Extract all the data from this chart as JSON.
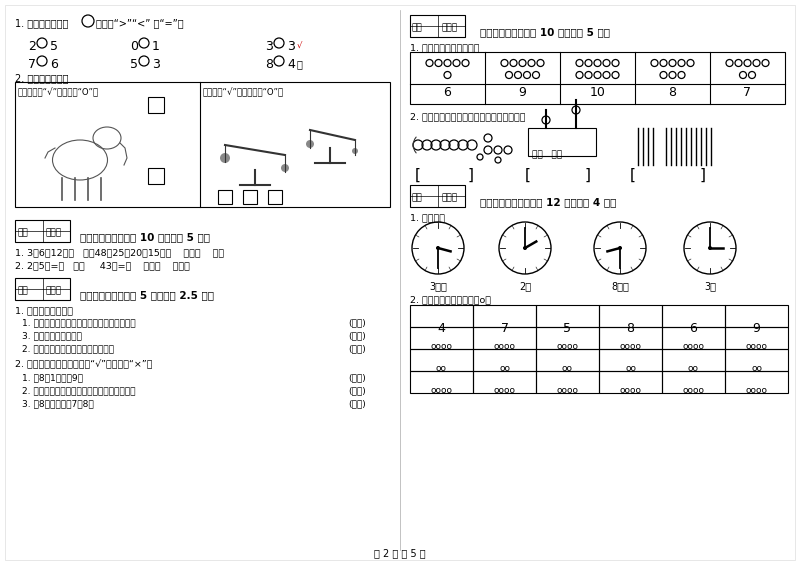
{
  "bg_color": "#ffffff",
  "border_color": "#cccccc",
  "text_color": "#000000",
  "light_gray": "#888888",
  "page_footer": "第 2 页 共 5 页",
  "left_s1_pairs": [
    [
      "2",
      "5"
    ],
    [
      "0",
      "1"
    ],
    [
      "3",
      "3"
    ],
    [
      "7",
      "6"
    ],
    [
      "5",
      "3"
    ],
    [
      "8",
      "4"
    ]
  ],
  "left_box1_label": "长得高的画“√”，矮的画“O”。",
  "left_box2_label": "最轻的画“√”，最重的画“O”。",
  "left_s3_title": "四、选一选（本题公 10 分，每题 5 分）",
  "left_s3_q1": "1. 3、6、12、（   ），48；25、20、15、（    ）、（    ）。",
  "left_s3_q2": "2. 2元5角=（   ）角     43角=（    ）元（    ）角。",
  "left_s4_title": "五、对与错（本题公 5 分，每题 2.5 分）",
  "left_s4_q1": "1. 我会判断对与错。",
  "left_s4_items1": [
    "1. 两个一样大的正方形可以拼成一个长方形。",
    "3. 长方形就是正方形。",
    "2. 两个三角形可以拼成一个四边形。"
  ],
  "left_s4_q2": "2. 下面的说法对吗，对的打“√”，错的打“×”。",
  "left_s4_items2": [
    "1. 比8大1的数是9。",
    "2. 从右边起，第一位是十位，第二位是个位。",
    "3. 与8相邻的数是7和8。"
  ],
  "right_s1_title": "六、数一数（本题公 10 分，每题 5 分）",
  "right_s1_q1": "1. 数的认识，看数涂色。",
  "right_s1_table_numbers": [
    "6",
    "9",
    "10",
    "8",
    "7"
  ],
  "right_s1_nums": [
    6,
    9,
    10,
    8,
    7
  ],
  "right_s1_q2": "2. 你能看图写数吗？越快越好，但别写错。",
  "right_s2_title": "七、看图说话（本题公 12 分，每题 4 分）",
  "right_s2_q1": "1. 连一连。",
  "clock_labels": [
    "3时半",
    "2时",
    "8时半",
    "3时"
  ],
  "right_s2_q2": "2. 划一划。（划去多余的o）",
  "table_header": [
    "4",
    "7",
    "5",
    "8",
    "6",
    "9"
  ],
  "table_rows": [
    [
      "oooo",
      "oooo",
      "oooo",
      "oooo",
      "oooo",
      "oooo"
    ],
    [
      "oo",
      "oo",
      "oo",
      "oo",
      "oo",
      "oo"
    ],
    [
      "oooo",
      "oooo",
      "oooo",
      "oooo",
      "oooo",
      "oooo"
    ]
  ],
  "score_fen": "得分",
  "score_juan": "评卷人",
  "left_s1_title": "1. 比一比大小，在",
  "left_s1_title2": "里填上“>”“<” 或“=”。",
  "left_s2_title": "2. 看图，比一比。"
}
